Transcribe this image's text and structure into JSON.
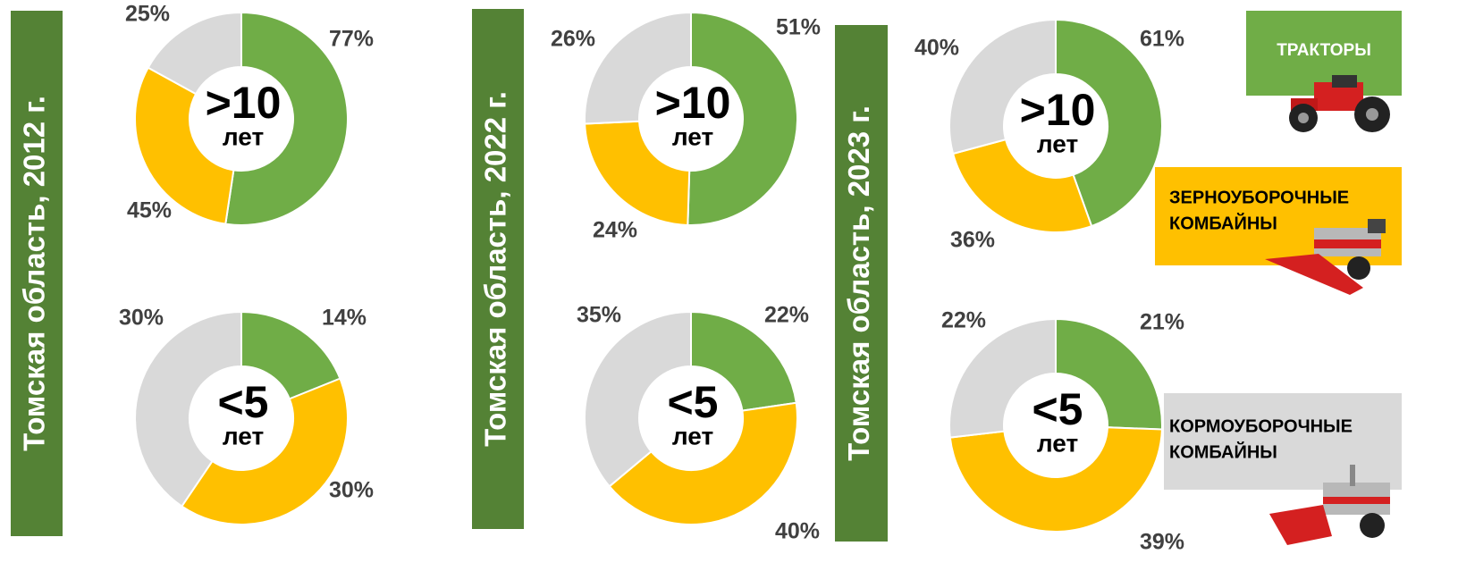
{
  "panels": [
    {
      "title": "Томская область, 2012 г."
    },
    {
      "title": "Томская область, 2022 г."
    },
    {
      "title": "Томская область, 2023 г."
    }
  ],
  "legend": [
    {
      "lines": [
        "ТРАКТОРЫ"
      ],
      "color": "#70ad47"
    },
    {
      "lines": [
        "ЗЕРНОУБОРОЧНЫЕ",
        "КОМБАЙНЫ"
      ],
      "color": "#ffc000"
    },
    {
      "lines": [
        "КОРМОУБОРОЧНЫЕ",
        "КОМБАЙНЫ"
      ],
      "color": "#d9d9d9"
    }
  ],
  "chart_data": [
    {
      "type": "pie",
      "center_label": ">10",
      "center_sublabel": "лет",
      "values": [
        77,
        45,
        25
      ],
      "value_labels": [
        "77%",
        "45%",
        "25%"
      ],
      "colors": [
        "#70ad47",
        "#ffc000",
        "#d9d9d9"
      ]
    },
    {
      "type": "pie",
      "center_label": "<5",
      "center_sublabel": "лет",
      "values": [
        14,
        30,
        30
      ],
      "value_labels": [
        "14%",
        "30%",
        "30%"
      ],
      "colors": [
        "#70ad47",
        "#ffc000",
        "#d9d9d9"
      ]
    },
    {
      "type": "pie",
      "center_label": ">10",
      "center_sublabel": "лет",
      "values": [
        51,
        24,
        26
      ],
      "value_labels": [
        "51%",
        "24%",
        "26%"
      ],
      "colors": [
        "#70ad47",
        "#ffc000",
        "#d9d9d9"
      ]
    },
    {
      "type": "pie",
      "center_label": "<5",
      "center_sublabel": "лет",
      "values": [
        22,
        40,
        35
      ],
      "value_labels": [
        "22%",
        "40%",
        "35%"
      ],
      "colors": [
        "#70ad47",
        "#ffc000",
        "#d9d9d9"
      ]
    },
    {
      "type": "pie",
      "center_label": ">10",
      "center_sublabel": "лет",
      "values": [
        61,
        36,
        40
      ],
      "value_labels": [
        "61%",
        "36%",
        "40%"
      ],
      "colors": [
        "#70ad47",
        "#ffc000",
        "#d9d9d9"
      ]
    },
    {
      "type": "pie",
      "center_label": "<5",
      "center_sublabel": "лет",
      "values": [
        21,
        39,
        22
      ],
      "value_labels": [
        "21%",
        "39%",
        "22%"
      ],
      "colors": [
        "#70ad47",
        "#ffc000",
        "#d9d9d9"
      ]
    }
  ]
}
